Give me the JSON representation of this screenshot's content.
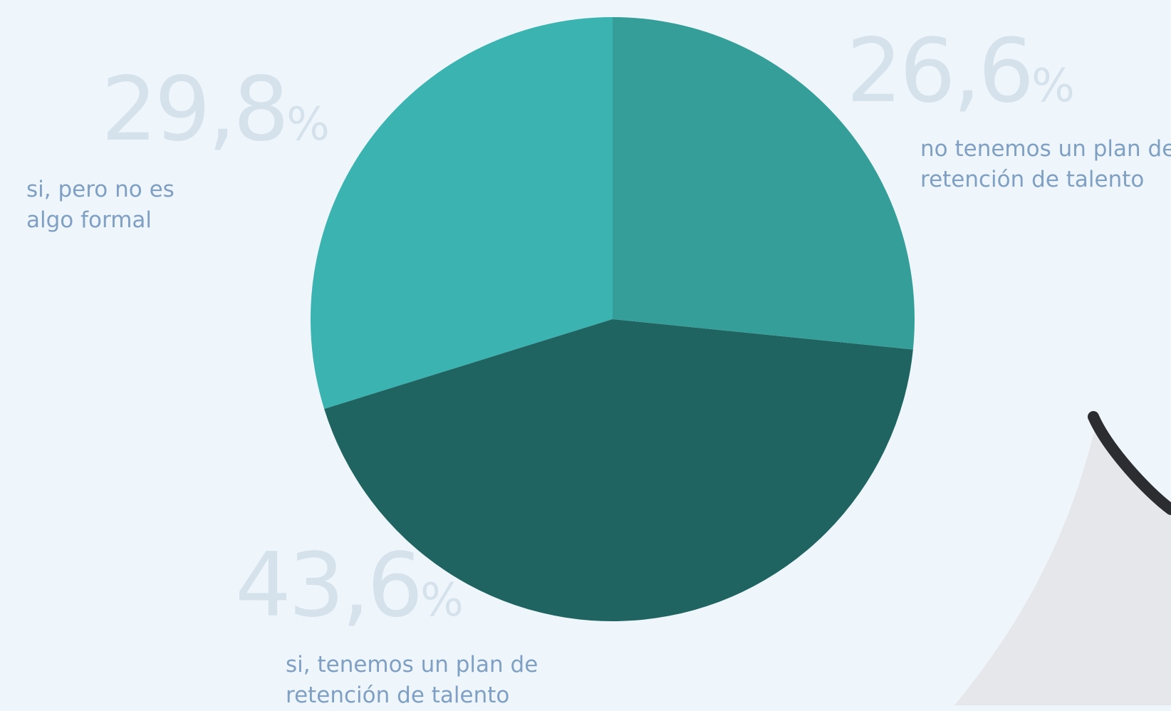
{
  "chart_data": {
    "type": "pie",
    "categories": [
      "no tenemos un plan de retención de talento",
      "si, tenemos un plan de retención de talento",
      "si, pero no es algo formal"
    ],
    "values": [
      26.6,
      43.6,
      29.8
    ],
    "value_labels": [
      "26,6%",
      "43,6%",
      "29,8%"
    ],
    "colors": [
      "#359e99",
      "#206462",
      "#3bb3b1"
    ]
  }
}
